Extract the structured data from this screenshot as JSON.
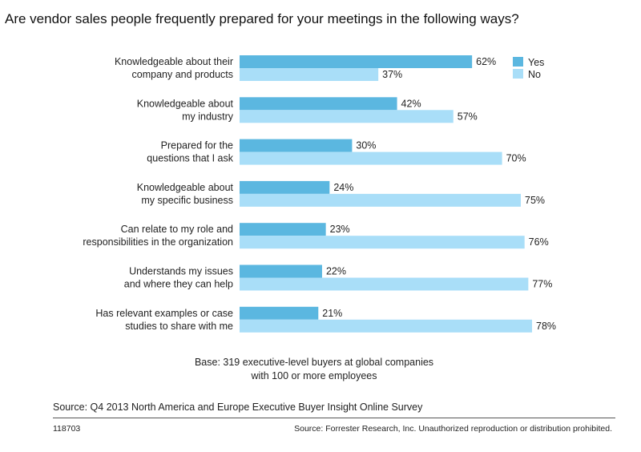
{
  "header": {
    "question": "Are vendor sales people frequently prepared for your meetings in the following ways?"
  },
  "chart_data": {
    "type": "bar",
    "orientation": "horizontal",
    "categories": [
      [
        "Knowledgeable about their",
        "company and products"
      ],
      [
        "Knowledgeable about",
        "my industry"
      ],
      [
        "Prepared for the",
        "questions that I ask"
      ],
      [
        "Knowledgeable about",
        "my specific business"
      ],
      [
        "Can relate to my role and",
        "responsibilities in the organization"
      ],
      [
        "Understands my issues",
        "and where they can help"
      ],
      [
        "Has relevant examples or case",
        "studies to share with me"
      ]
    ],
    "series": [
      {
        "name": "Yes",
        "color": "#5bb7e0",
        "values": [
          62,
          42,
          30,
          24,
          23,
          22,
          21
        ]
      },
      {
        "name": "No",
        "color": "#a9def8",
        "values": [
          37,
          57,
          70,
          75,
          76,
          77,
          78
        ]
      }
    ],
    "value_suffix": "%",
    "xlim": [
      0,
      100
    ],
    "legend_position": "top-right",
    "grid": false
  },
  "notes": {
    "base_line1": "Base: 319 executive-level buyers at global companies",
    "base_line2": "with 100 or more employees"
  },
  "footer": {
    "source": "Source: Q4 2013 North America and Europe Executive Buyer Insight Online Survey",
    "id": "118703",
    "copyright": "Source: Forrester Research, Inc. Unauthorized reproduction or distribution prohibited."
  }
}
